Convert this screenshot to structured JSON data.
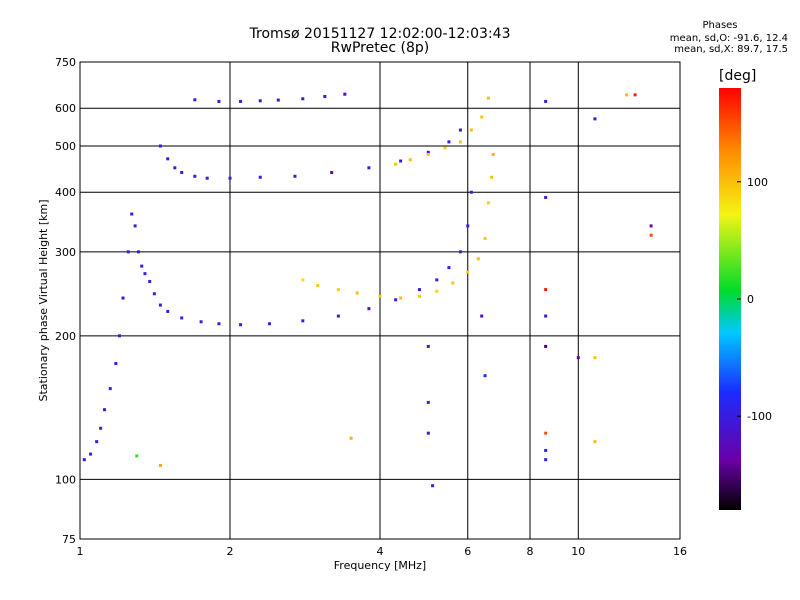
{
  "header": {
    "title_line1": "Tromsø 20151127 12:02:00-12:03:43",
    "title_line2": "RwPretec (8p)",
    "phases_heading": "Phases",
    "stats_o": "mean, sd,O: -91.6, 12.4",
    "stats_x": "mean, sd,X: 89.7, 17.5"
  },
  "colorbar": {
    "unit_label": "[deg]",
    "tick_labels": [
      "100",
      "0",
      "-100"
    ],
    "tick_values": [
      100,
      0,
      -100
    ],
    "range": [
      -180,
      180
    ],
    "colormap": "rainbow (black-purple-blue-cyan-green-yellow-orange-red)"
  },
  "colors": {
    "o_mode": "#1a3cf0",
    "x_mode": "#ecec14",
    "grid": "#000000",
    "background": "#ffffff"
  },
  "chart_data": {
    "type": "scatter",
    "title": "Tromsø 20151127 12:02:00-12:03:43",
    "subtitle": "RwPretec (8p)",
    "xlabel": "Frequency [MHz]",
    "ylabel": "Stationary phase Virtual Height [km]",
    "xscale": "log",
    "yscale": "log",
    "xlim": [
      1,
      16
    ],
    "ylim": [
      75,
      750
    ],
    "x_ticks": [
      1,
      2,
      4,
      6,
      8,
      10,
      16
    ],
    "x_tick_labels": [
      "1",
      "2",
      "4",
      "6",
      "8",
      "10",
      "16"
    ],
    "y_ticks": [
      75,
      100,
      200,
      300,
      400,
      500,
      600,
      750
    ],
    "y_tick_labels": [
      "75",
      "100",
      "200",
      "300",
      "400",
      "500",
      "600",
      "750"
    ],
    "grid": true,
    "color_variable": "phase [deg]",
    "series": [
      {
        "mode": "O",
        "x": [
          1.02,
          1.05,
          1.08,
          1.1,
          1.12,
          1.15,
          1.18,
          1.2,
          1.22,
          1.25,
          1.27,
          1.29,
          1.31,
          1.33,
          1.35,
          1.38,
          1.41,
          1.45,
          1.5,
          1.6,
          1.75,
          1.9,
          2.1,
          2.4,
          2.8,
          3.3,
          3.8,
          4.3,
          4.8,
          5.2,
          5.5,
          5.8,
          6.0,
          6.1
        ],
        "y": [
          110,
          113,
          120,
          128,
          140,
          155,
          175,
          200,
          240,
          300,
          360,
          340,
          300,
          280,
          270,
          260,
          245,
          232,
          225,
          218,
          214,
          212,
          211,
          212,
          215,
          220,
          228,
          238,
          250,
          262,
          278,
          300,
          340,
          400
        ],
        "phase": [
          -100,
          -95,
          -100,
          -98,
          -102,
          -100,
          -97,
          -95,
          -100,
          -98,
          -96,
          -100,
          -102,
          -99,
          -98,
          -100,
          -97,
          -100,
          -100,
          -98,
          -100,
          -100,
          -100,
          -98,
          -95,
          -110,
          -120,
          -110,
          -100,
          -95,
          -100,
          -95,
          -100,
          -95
        ]
      },
      {
        "mode": "X",
        "x": [
          2.8,
          3.0,
          3.3,
          3.6,
          4.0,
          4.4,
          4.8,
          5.2,
          5.6,
          6.0,
          6.3,
          6.5,
          6.6,
          6.7,
          6.75
        ],
        "y": [
          262,
          255,
          250,
          246,
          242,
          240,
          242,
          248,
          258,
          272,
          290,
          320,
          380,
          430,
          480
        ],
        "phase": [
          85,
          95,
          90,
          100,
          95,
          100,
          95,
          90,
          95,
          90,
          100,
          95,
          90,
          100,
          105
        ]
      },
      {
        "mode": "O",
        "x": [
          1.45,
          1.5,
          1.55,
          1.6,
          1.7,
          1.8,
          2.0,
          2.3,
          2.7,
          3.2,
          3.8,
          4.4,
          5.0,
          5.5,
          5.8
        ],
        "y": [
          500,
          470,
          450,
          440,
          432,
          428,
          428,
          430,
          432,
          440,
          450,
          465,
          485,
          510,
          540
        ],
        "phase": [
          -100,
          -98,
          -102,
          -100,
          -100,
          -98,
          -100,
          -100,
          -100,
          -120,
          -110,
          -95,
          -100,
          -98,
          -100
        ]
      },
      {
        "mode": "X",
        "x": [
          4.3,
          4.6,
          5.0,
          5.4,
          5.8,
          6.1,
          6.4,
          6.6
        ],
        "y": [
          458,
          468,
          480,
          495,
          510,
          540,
          575,
          630
        ],
        "phase": [
          95,
          100,
          95,
          90,
          95,
          100,
          95,
          100
        ]
      },
      {
        "mode": "O",
        "x": [
          1.7,
          1.9,
          2.1,
          2.3,
          2.5,
          2.8,
          3.1,
          3.4
        ],
        "y": [
          625,
          620,
          620,
          622,
          624,
          628,
          635,
          642
        ],
        "phase": [
          -100,
          -100,
          -95,
          -100,
          -100,
          -105,
          -110,
          -120
        ]
      }
    ],
    "scattered_points": {
      "x": [
        5.0,
        5.0,
        5.0,
        5.1,
        6.4,
        6.5,
        8.6,
        8.6,
        8.6,
        8.6,
        8.6,
        8.6,
        8.6,
        8.6,
        10.0,
        10.8,
        10.8,
        10.8,
        12.5,
        13.0,
        14.0,
        14.0,
        3.5,
        1.45,
        1.3
      ],
      "y": [
        190,
        145,
        125,
        97,
        220,
        165,
        620,
        390,
        250,
        220,
        190,
        125,
        115,
        110,
        180,
        570,
        180,
        120,
        640,
        640,
        340,
        325,
        122,
        107,
        112
      ],
      "phase": [
        -100,
        -90,
        -110,
        -100,
        -120,
        -80,
        -100,
        -100,
        170,
        -110,
        -150,
        150,
        -90,
        -90,
        -140,
        -95,
        95,
        100,
        100,
        170,
        -130,
        150,
        110,
        110,
        20
      ]
    }
  }
}
